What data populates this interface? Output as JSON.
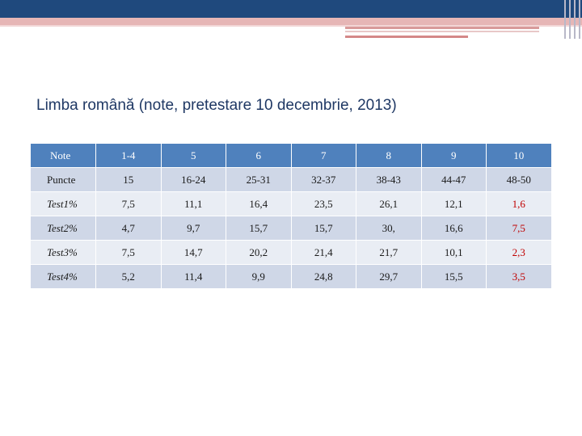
{
  "slide": {
    "title": "Limba română (note, pretestare 10 decembrie, 2013)"
  },
  "colors": {
    "header_bg": "#4f81bd",
    "row_dark": "#cfd7e7",
    "row_light": "#e9edf4",
    "accent": "#c00000",
    "title": "#1f3864"
  },
  "table": {
    "header": {
      "label": "Note",
      "cells": [
        "1-4",
        "5",
        "6",
        "7",
        "8",
        "9",
        "10"
      ]
    },
    "rows": [
      {
        "label": "Puncte",
        "cells": [
          "15",
          "16-24",
          "25-31",
          "32-37",
          "38-43",
          "44-47",
          "48-50"
        ]
      },
      {
        "label": "Test1%",
        "cells": [
          "7,5",
          "11,1",
          "16,4",
          "23,5",
          "26,1",
          "12,1",
          "1,6"
        ]
      },
      {
        "label": "Test2%",
        "cells": [
          "4,7",
          "9,7",
          "15,7",
          "15,7",
          "30,",
          "16,6",
          "7,5"
        ]
      },
      {
        "label": "Test3%",
        "cells": [
          "7,5",
          "14,7",
          "20,2",
          "21,4",
          "21,7",
          "10,1",
          "2,3"
        ]
      },
      {
        "label": "Test4%",
        "cells": [
          "5,2",
          "11,4",
          "9,9",
          "24,8",
          "29,7",
          "15,5",
          "3,5"
        ]
      }
    ]
  }
}
